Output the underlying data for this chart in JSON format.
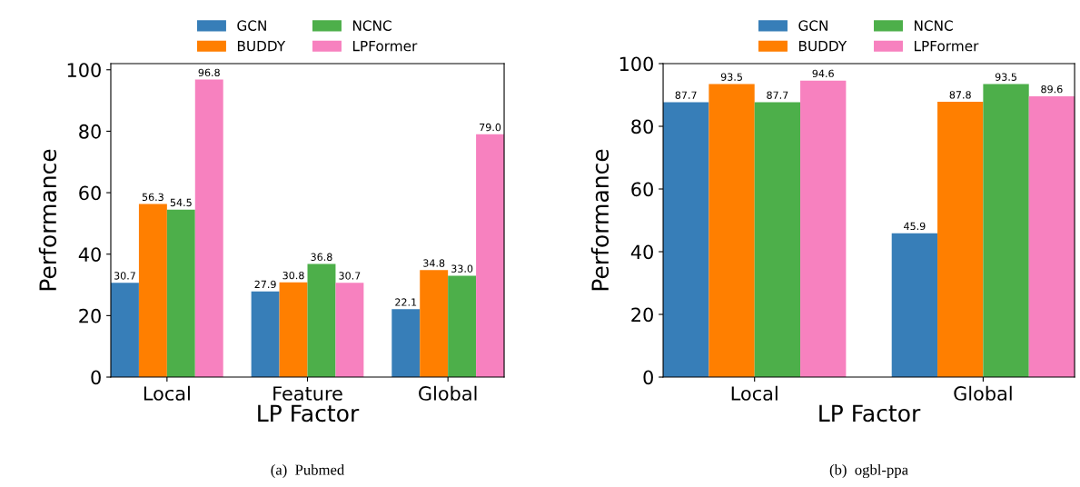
{
  "chart_data": [
    {
      "type": "bar",
      "xlabel": "LP Factor",
      "ylabel": "Performance",
      "categories": [
        "Local",
        "Feature",
        "Global"
      ],
      "series": [
        {
          "name": "GCN",
          "color": "#377eb8",
          "values": [
            30.7,
            27.9,
            22.1
          ],
          "value_labels": [
            "30.7",
            "27.9",
            "22.1"
          ]
        },
        {
          "name": "BUDDY",
          "color": "#ff7f00",
          "values": [
            56.3,
            30.8,
            34.8
          ],
          "value_labels": [
            "56.3",
            "30.8",
            "34.8"
          ]
        },
        {
          "name": "NCNC",
          "color": "#4daf4a",
          "values": [
            54.5,
            36.8,
            33.0
          ],
          "value_labels": [
            "54.5",
            "36.8",
            "33.0"
          ]
        },
        {
          "name": "LPFormer",
          "color": "#f781bf",
          "values": [
            96.8,
            30.7,
            79.0
          ],
          "value_labels": [
            "96.8",
            "30.7",
            "79.0"
          ]
        }
      ],
      "ylim": [
        0,
        102
      ],
      "yticks": [
        0,
        20,
        40,
        60,
        80,
        100
      ],
      "legend": "top",
      "grid": false,
      "annotations": [
        "(a)  Pubmed"
      ]
    },
    {
      "type": "bar",
      "xlabel": "LP Factor",
      "ylabel": "Performance",
      "categories": [
        "Local",
        "Global"
      ],
      "series": [
        {
          "name": "GCN",
          "color": "#377eb8",
          "values": [
            87.7,
            45.9
          ]
        },
        {
          "name": "BUDDY",
          "color": "#ff7f00",
          "values": [
            93.5,
            87.8
          ]
        },
        {
          "name": "NCNC",
          "color": "#4daf4a",
          "values": [
            87.7,
            93.5
          ]
        },
        {
          "name": "LPFormer",
          "color": "#f781bf",
          "values": [
            94.6,
            89.6
          ]
        }
      ],
      "ylim": [
        0,
        100
      ],
      "yticks": [
        0,
        20,
        40,
        60,
        80,
        100
      ],
      "data_labels": true,
      "legend": "top",
      "grid": false,
      "annotations": [
        "(b)  ogbl-ppa"
      ]
    }
  ]
}
